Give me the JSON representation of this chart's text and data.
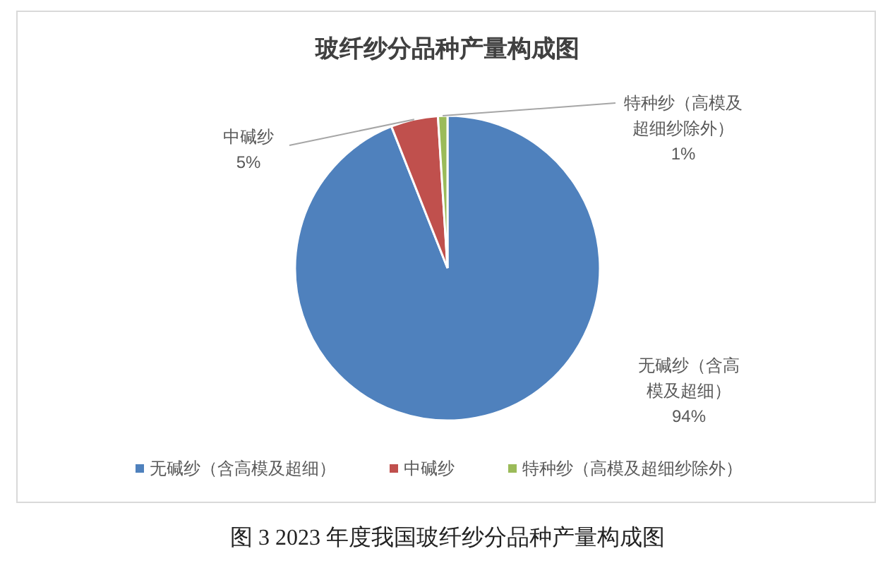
{
  "chart_data": {
    "type": "pie",
    "title": "玻纤纱分品种产量构成图",
    "categories": [
      "无碱纱（含高模及超细）",
      "中碱纱",
      "特种纱（高模及超细纱除外）"
    ],
    "values": [
      94,
      5,
      1
    ],
    "colors": [
      "#4f81bd",
      "#c0504d",
      "#9bbb59"
    ],
    "value_labels": [
      "94%",
      "5%",
      "1%"
    ],
    "legend": "bottom",
    "annotations": [
      "图 3 2023 年度我国玻纤纱分品种产量构成图"
    ]
  }
}
